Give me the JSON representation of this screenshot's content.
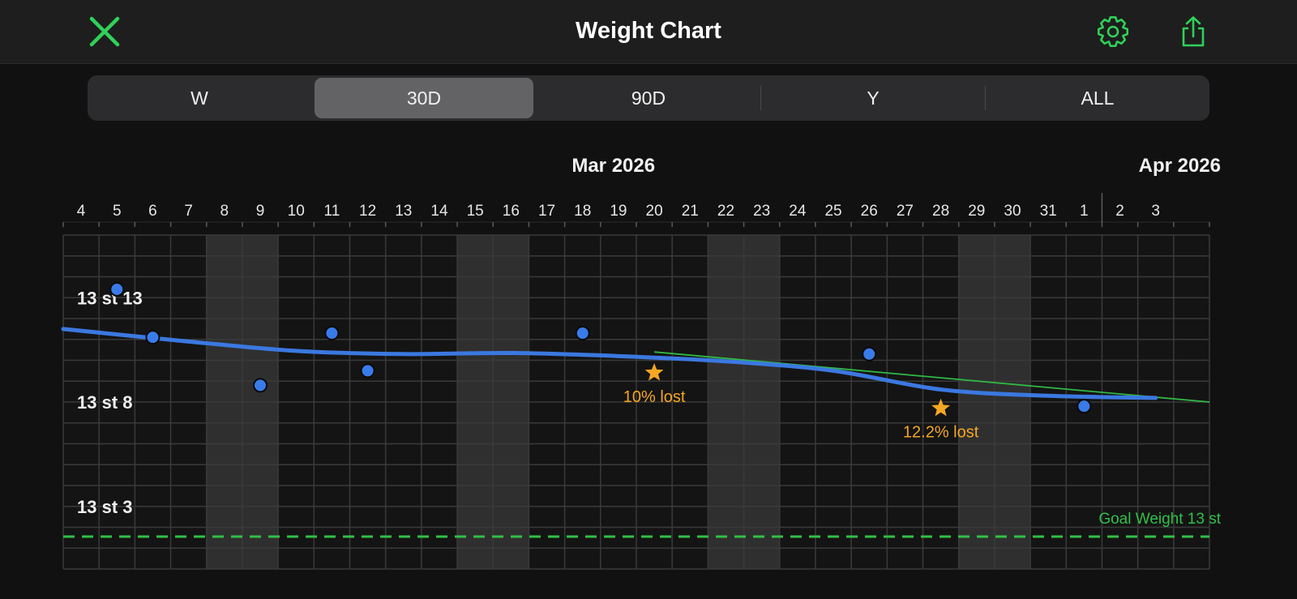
{
  "header": {
    "title": "Weight Chart",
    "close_icon": "close-x-icon",
    "settings_icon": "gear-icon",
    "share_icon": "share-icon",
    "accent": "#30d158"
  },
  "ranges": {
    "options": [
      "W",
      "30D",
      "90D",
      "Y",
      "ALL"
    ],
    "selected": "30D"
  },
  "chart_data": {
    "type": "line",
    "month_labels": [
      {
        "label": "Mar 2026",
        "day": "2026-03-17"
      },
      {
        "label": "Apr 2026",
        "day": "2026-04-03"
      }
    ],
    "day_ticks": [
      "4",
      "5",
      "6",
      "7",
      "8",
      "9",
      "10",
      "11",
      "12",
      "13",
      "14",
      "15",
      "16",
      "17",
      "18",
      "19",
      "20",
      "21",
      "22",
      "23",
      "24",
      "25",
      "26",
      "27",
      "28",
      "29",
      "30",
      "31",
      "1",
      "2",
      "3"
    ],
    "xlim": [
      "2026-03-03",
      "2026-04-03"
    ],
    "weekend_bands": [
      [
        "2026-03-07",
        "2026-03-08"
      ],
      [
        "2026-03-14",
        "2026-03-15"
      ],
      [
        "2026-03-21",
        "2026-03-22"
      ],
      [
        "2026-03-28",
        "2026-03-29"
      ]
    ],
    "y_ticks": [
      {
        "label": "13 st 13",
        "lb": 195
      },
      {
        "label": "13 st 8",
        "lb": 190
      },
      {
        "label": "13 st 3",
        "lb": 185
      }
    ],
    "ylim": [
      182,
      198
    ],
    "points": [
      {
        "date": "2026-03-04",
        "lb": 195.4
      },
      {
        "date": "2026-03-05",
        "lb": 193.1
      },
      {
        "date": "2026-03-08",
        "lb": 190.8
      },
      {
        "date": "2026-03-10",
        "lb": 193.3
      },
      {
        "date": "2026-03-11",
        "lb": 191.5
      },
      {
        "date": "2026-03-17",
        "lb": 193.3
      },
      {
        "date": "2026-03-25",
        "lb": 192.3
      },
      {
        "date": "2026-03-31",
        "lb": 189.8
      }
    ],
    "trend": [
      {
        "date": "2026-03-03",
        "lb": 193.5
      },
      {
        "date": "2026-03-06",
        "lb": 192.9
      },
      {
        "date": "2026-03-09",
        "lb": 192.45
      },
      {
        "date": "2026-03-12",
        "lb": 192.3
      },
      {
        "date": "2026-03-15",
        "lb": 192.35
      },
      {
        "date": "2026-03-18",
        "lb": 192.2
      },
      {
        "date": "2026-03-21",
        "lb": 191.95
      },
      {
        "date": "2026-03-24",
        "lb": 191.5
      },
      {
        "date": "2026-03-27",
        "lb": 190.6
      },
      {
        "date": "2026-03-30",
        "lb": 190.3
      },
      {
        "date": "2026-04-02",
        "lb": 190.2
      }
    ],
    "projection": [
      {
        "date": "2026-03-19",
        "lb": 192.4
      },
      {
        "date": "2026-04-03",
        "lb": 190.0
      }
    ],
    "milestones": [
      {
        "date": "2026-03-19",
        "lb": 191.4,
        "label": "10% lost"
      },
      {
        "date": "2026-03-27",
        "lb": 189.7,
        "label": "12.2% lost"
      }
    ],
    "goal": {
      "lb": 182,
      "label": "Goal Weight 13 st"
    },
    "colors": {
      "dots": "#3a7bea",
      "trend": "#3b78e0",
      "projection": "#30b845",
      "goal": "#30c048",
      "milestone": "#f5a623",
      "band": "#2f2f2f",
      "grid": "#3a3a3a"
    }
  }
}
